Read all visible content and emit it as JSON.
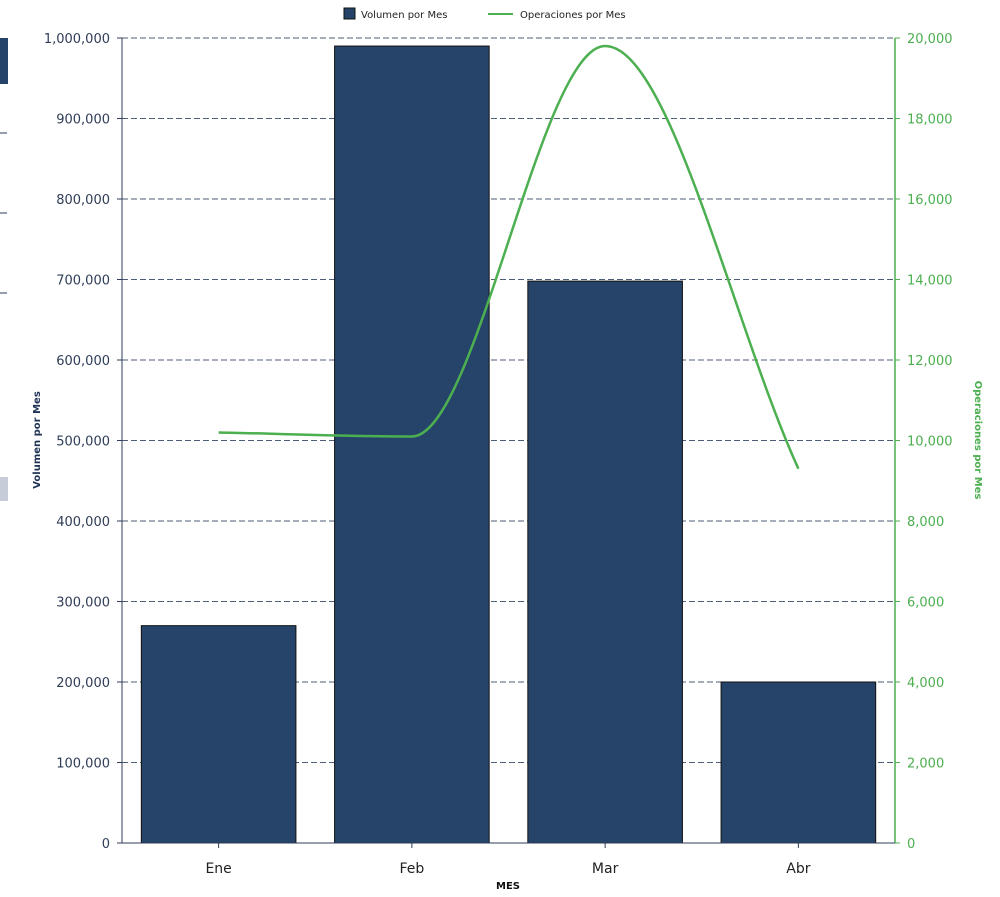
{
  "chart_data": {
    "type": "bar",
    "categories": [
      "Ene",
      "Feb",
      "Mar",
      "Abr"
    ],
    "series": [
      {
        "name": "Volumen por Mes",
        "type": "bar",
        "axis": "left",
        "values": [
          270000,
          990000,
          698000,
          200000
        ]
      },
      {
        "name": "Operaciones por Mes",
        "type": "line",
        "axis": "right",
        "values": [
          10200,
          10100,
          19800,
          9300
        ]
      }
    ],
    "xlabel": "MES",
    "ylabel_left": "Volumen por Mes",
    "ylabel_right": "Operaciones por Mes",
    "ylim_left": [
      0,
      1000000
    ],
    "ylim_right": [
      0,
      20000
    ],
    "yticks_left": [
      "0",
      "100,000",
      "200,000",
      "300,000",
      "400,000",
      "500,000",
      "600,000",
      "700,000",
      "800,000",
      "900,000",
      "1,000,000"
    ],
    "yticks_right": [
      "0",
      "2,000",
      "4,000",
      "6,000",
      "8,000",
      "10,000",
      "12,000",
      "14,000",
      "16,000",
      "18,000",
      "20,000"
    ],
    "grid": true,
    "legend": "top-center",
    "colors": {
      "bar": "#26446a",
      "bar_stroke": "#111111",
      "line": "#4caf50",
      "grid": "#4d5e78",
      "left_axis": "#2f3d57",
      "right_axis": "#4caf50"
    }
  }
}
